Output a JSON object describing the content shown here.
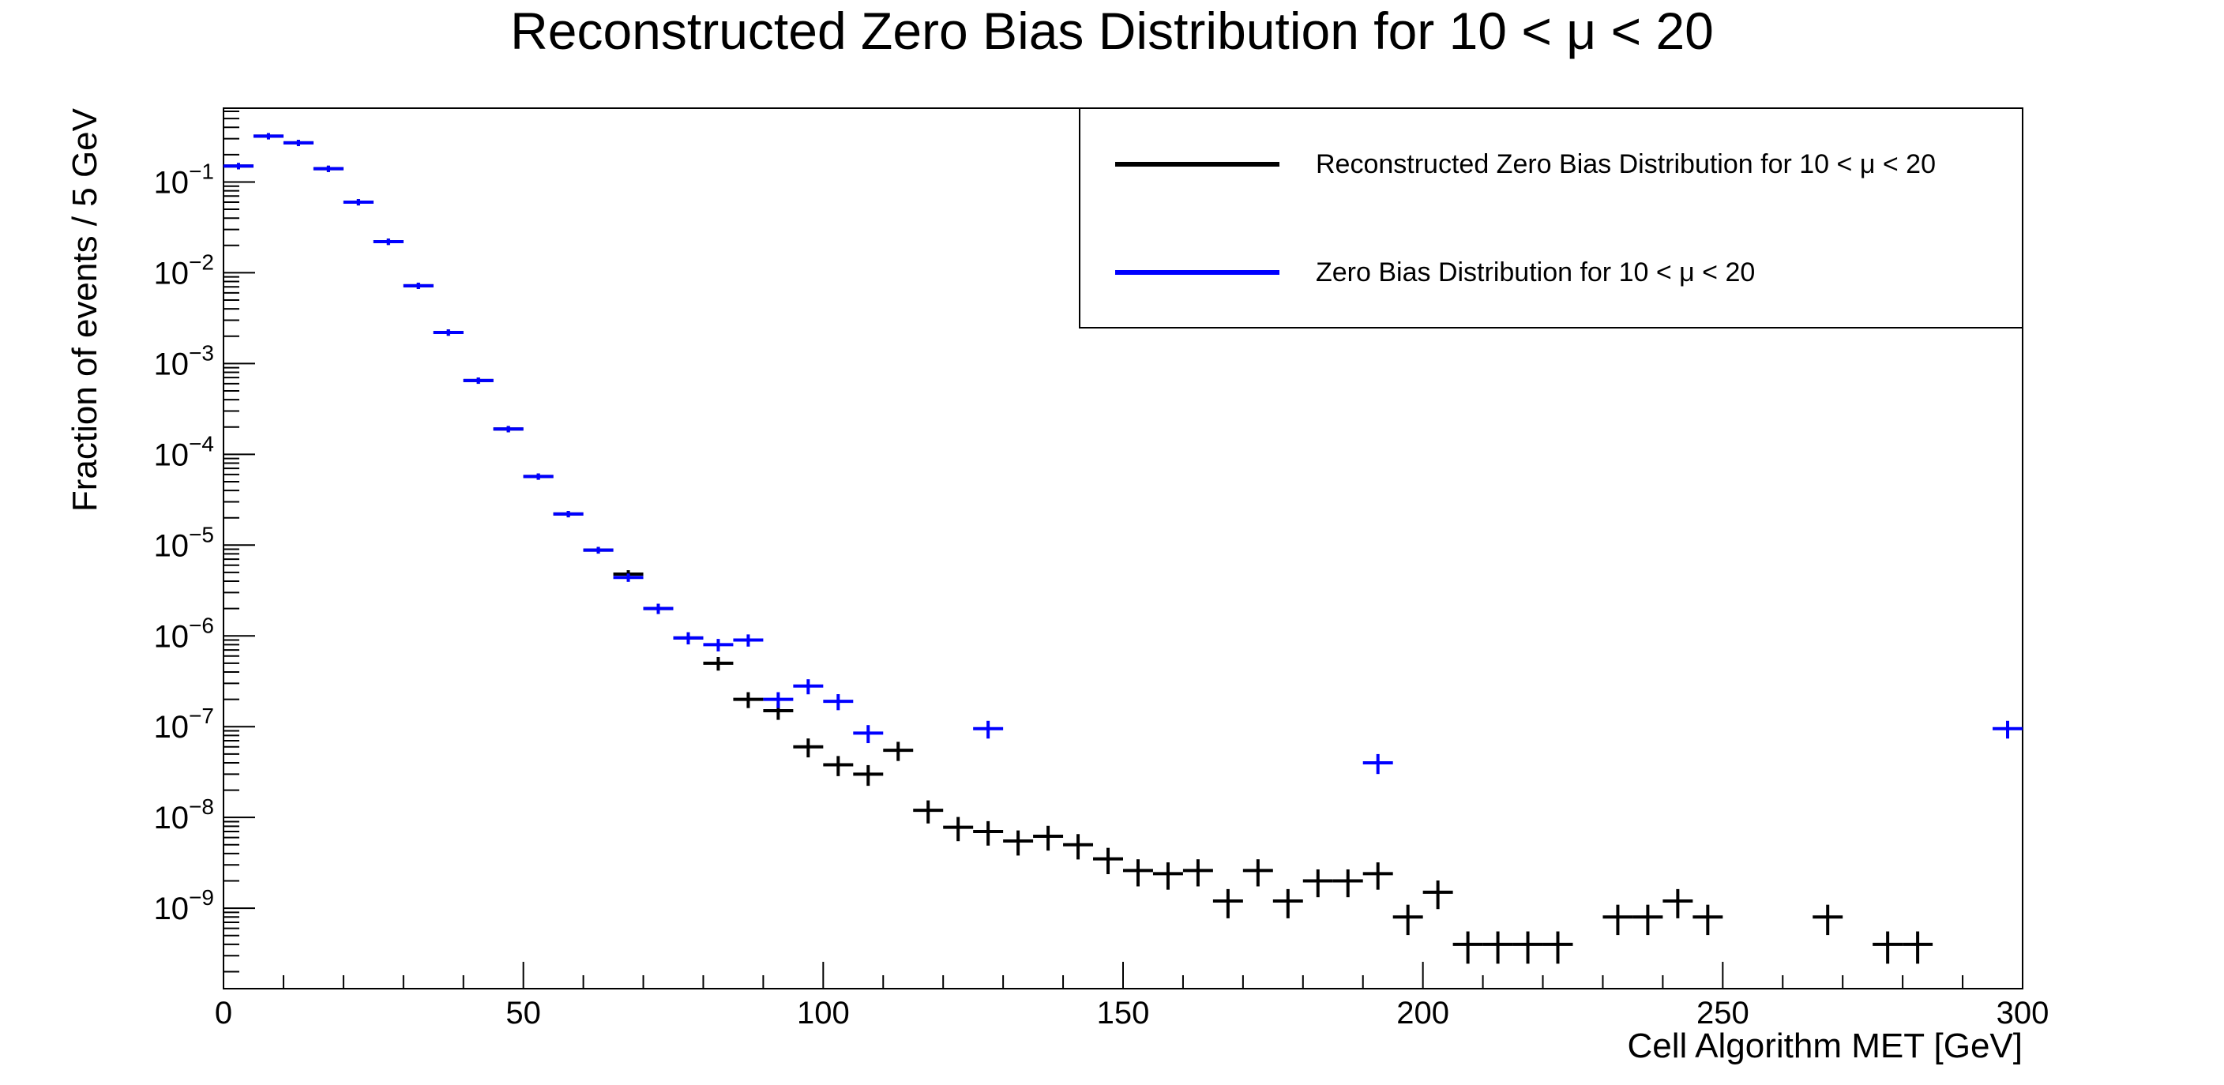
{
  "chart_data": {
    "type": "scatter",
    "title": "Reconstructed Zero Bias Distribution for 10 < μ < 20",
    "xlabel": "Cell Algorithm MET [GeV]",
    "ylabel": "Fraction of events / 5 GeV",
    "xlim": [
      0,
      300
    ],
    "ylim": [
      1.3e-10,
      0.65
    ],
    "yscale": "log",
    "x_ticks": [
      0,
      50,
      100,
      150,
      200,
      250,
      300
    ],
    "y_ticks": [
      {
        "base": "10",
        "exp": "−1",
        "value": 0.1
      },
      {
        "base": "10",
        "exp": "−2",
        "value": 0.01
      },
      {
        "base": "10",
        "exp": "−3",
        "value": 0.001
      },
      {
        "base": "10",
        "exp": "−4",
        "value": 0.0001
      },
      {
        "base": "10",
        "exp": "−5",
        "value": 1e-05
      },
      {
        "base": "10",
        "exp": "−6",
        "value": 1e-06
      },
      {
        "base": "10",
        "exp": "−7",
        "value": 1e-07
      },
      {
        "base": "10",
        "exp": "−8",
        "value": 1e-08
      },
      {
        "base": "10",
        "exp": "−9",
        "value": 1e-09
      }
    ],
    "grid": false,
    "legend_position": "top-right",
    "bin_width": 5,
    "series": [
      {
        "name": "Reconstructed Zero Bias Distribution for 10 < μ < 20",
        "color": "#000000",
        "points": [
          {
            "x": 2.5,
            "y": 0.15
          },
          {
            "x": 7.5,
            "y": 0.32
          },
          {
            "x": 12.5,
            "y": 0.27
          },
          {
            "x": 17.5,
            "y": 0.14
          },
          {
            "x": 22.5,
            "y": 0.06
          },
          {
            "x": 27.5,
            "y": 0.022
          },
          {
            "x": 32.5,
            "y": 0.0072
          },
          {
            "x": 37.5,
            "y": 0.0022
          },
          {
            "x": 42.5,
            "y": 0.00065
          },
          {
            "x": 47.5,
            "y": 0.00019
          },
          {
            "x": 52.5,
            "y": 5.7e-05
          },
          {
            "x": 57.5,
            "y": 2.2e-05
          },
          {
            "x": 62.5,
            "y": 8.8e-06
          },
          {
            "x": 67.5,
            "y": 4.8e-06
          },
          {
            "x": 72.5,
            "y": 2e-06
          },
          {
            "x": 77.5,
            "y": 9.5e-07
          },
          {
            "x": 82.5,
            "y": 5e-07
          },
          {
            "x": 87.5,
            "y": 2e-07
          },
          {
            "x": 92.5,
            "y": 1.5e-07
          },
          {
            "x": 97.5,
            "y": 6e-08
          },
          {
            "x": 102.5,
            "y": 3.8e-08
          },
          {
            "x": 107.5,
            "y": 3e-08
          },
          {
            "x": 112.5,
            "y": 5.5e-08
          },
          {
            "x": 117.5,
            "y": 1.2e-08
          },
          {
            "x": 122.5,
            "y": 7.8e-09
          },
          {
            "x": 127.5,
            "y": 7e-09
          },
          {
            "x": 132.5,
            "y": 5.5e-09
          },
          {
            "x": 137.5,
            "y": 6.2e-09
          },
          {
            "x": 142.5,
            "y": 5e-09
          },
          {
            "x": 147.5,
            "y": 3.5e-09
          },
          {
            "x": 152.5,
            "y": 2.6e-09
          },
          {
            "x": 157.5,
            "y": 2.4e-09
          },
          {
            "x": 162.5,
            "y": 2.6e-09
          },
          {
            "x": 167.5,
            "y": 1.2e-09
          },
          {
            "x": 172.5,
            "y": 2.6e-09
          },
          {
            "x": 177.5,
            "y": 1.2e-09
          },
          {
            "x": 182.5,
            "y": 2e-09
          },
          {
            "x": 187.5,
            "y": 2e-09
          },
          {
            "x": 192.5,
            "y": 2.4e-09
          },
          {
            "x": 197.5,
            "y": 8e-10
          },
          {
            "x": 202.5,
            "y": 1.5e-09
          },
          {
            "x": 207.5,
            "y": 4e-10
          },
          {
            "x": 212.5,
            "y": 4e-10
          },
          {
            "x": 217.5,
            "y": 4e-10
          },
          {
            "x": 222.5,
            "y": 4e-10
          },
          {
            "x": 232.5,
            "y": 8e-10
          },
          {
            "x": 237.5,
            "y": 8e-10
          },
          {
            "x": 242.5,
            "y": 1.2e-09
          },
          {
            "x": 247.5,
            "y": 8e-10
          },
          {
            "x": 267.5,
            "y": 8e-10
          },
          {
            "x": 277.5,
            "y": 4e-10
          },
          {
            "x": 282.5,
            "y": 4e-10
          }
        ]
      },
      {
        "name": "Zero Bias Distribution for 10 < μ < 20",
        "color": "#0000ff",
        "points": [
          {
            "x": 2.5,
            "y": 0.15
          },
          {
            "x": 7.5,
            "y": 0.32
          },
          {
            "x": 12.5,
            "y": 0.27
          },
          {
            "x": 17.5,
            "y": 0.14
          },
          {
            "x": 22.5,
            "y": 0.06
          },
          {
            "x": 27.5,
            "y": 0.022
          },
          {
            "x": 32.5,
            "y": 0.0072
          },
          {
            "x": 37.5,
            "y": 0.0022
          },
          {
            "x": 42.5,
            "y": 0.00065
          },
          {
            "x": 47.5,
            "y": 0.00019
          },
          {
            "x": 52.5,
            "y": 5.7e-05
          },
          {
            "x": 57.5,
            "y": 2.2e-05
          },
          {
            "x": 62.5,
            "y": 8.8e-06
          },
          {
            "x": 67.5,
            "y": 4.4e-06
          },
          {
            "x": 72.5,
            "y": 2e-06
          },
          {
            "x": 77.5,
            "y": 9.5e-07
          },
          {
            "x": 82.5,
            "y": 8e-07
          },
          {
            "x": 87.5,
            "y": 9e-07
          },
          {
            "x": 92.5,
            "y": 2e-07
          },
          {
            "x": 97.5,
            "y": 2.8e-07
          },
          {
            "x": 102.5,
            "y": 1.9e-07
          },
          {
            "x": 107.5,
            "y": 8.5e-08
          },
          {
            "x": 127.5,
            "y": 9.5e-08
          },
          {
            "x": 192.5,
            "y": 4e-08
          },
          {
            "x": 297.5,
            "y": 9.5e-08
          }
        ]
      }
    ]
  }
}
